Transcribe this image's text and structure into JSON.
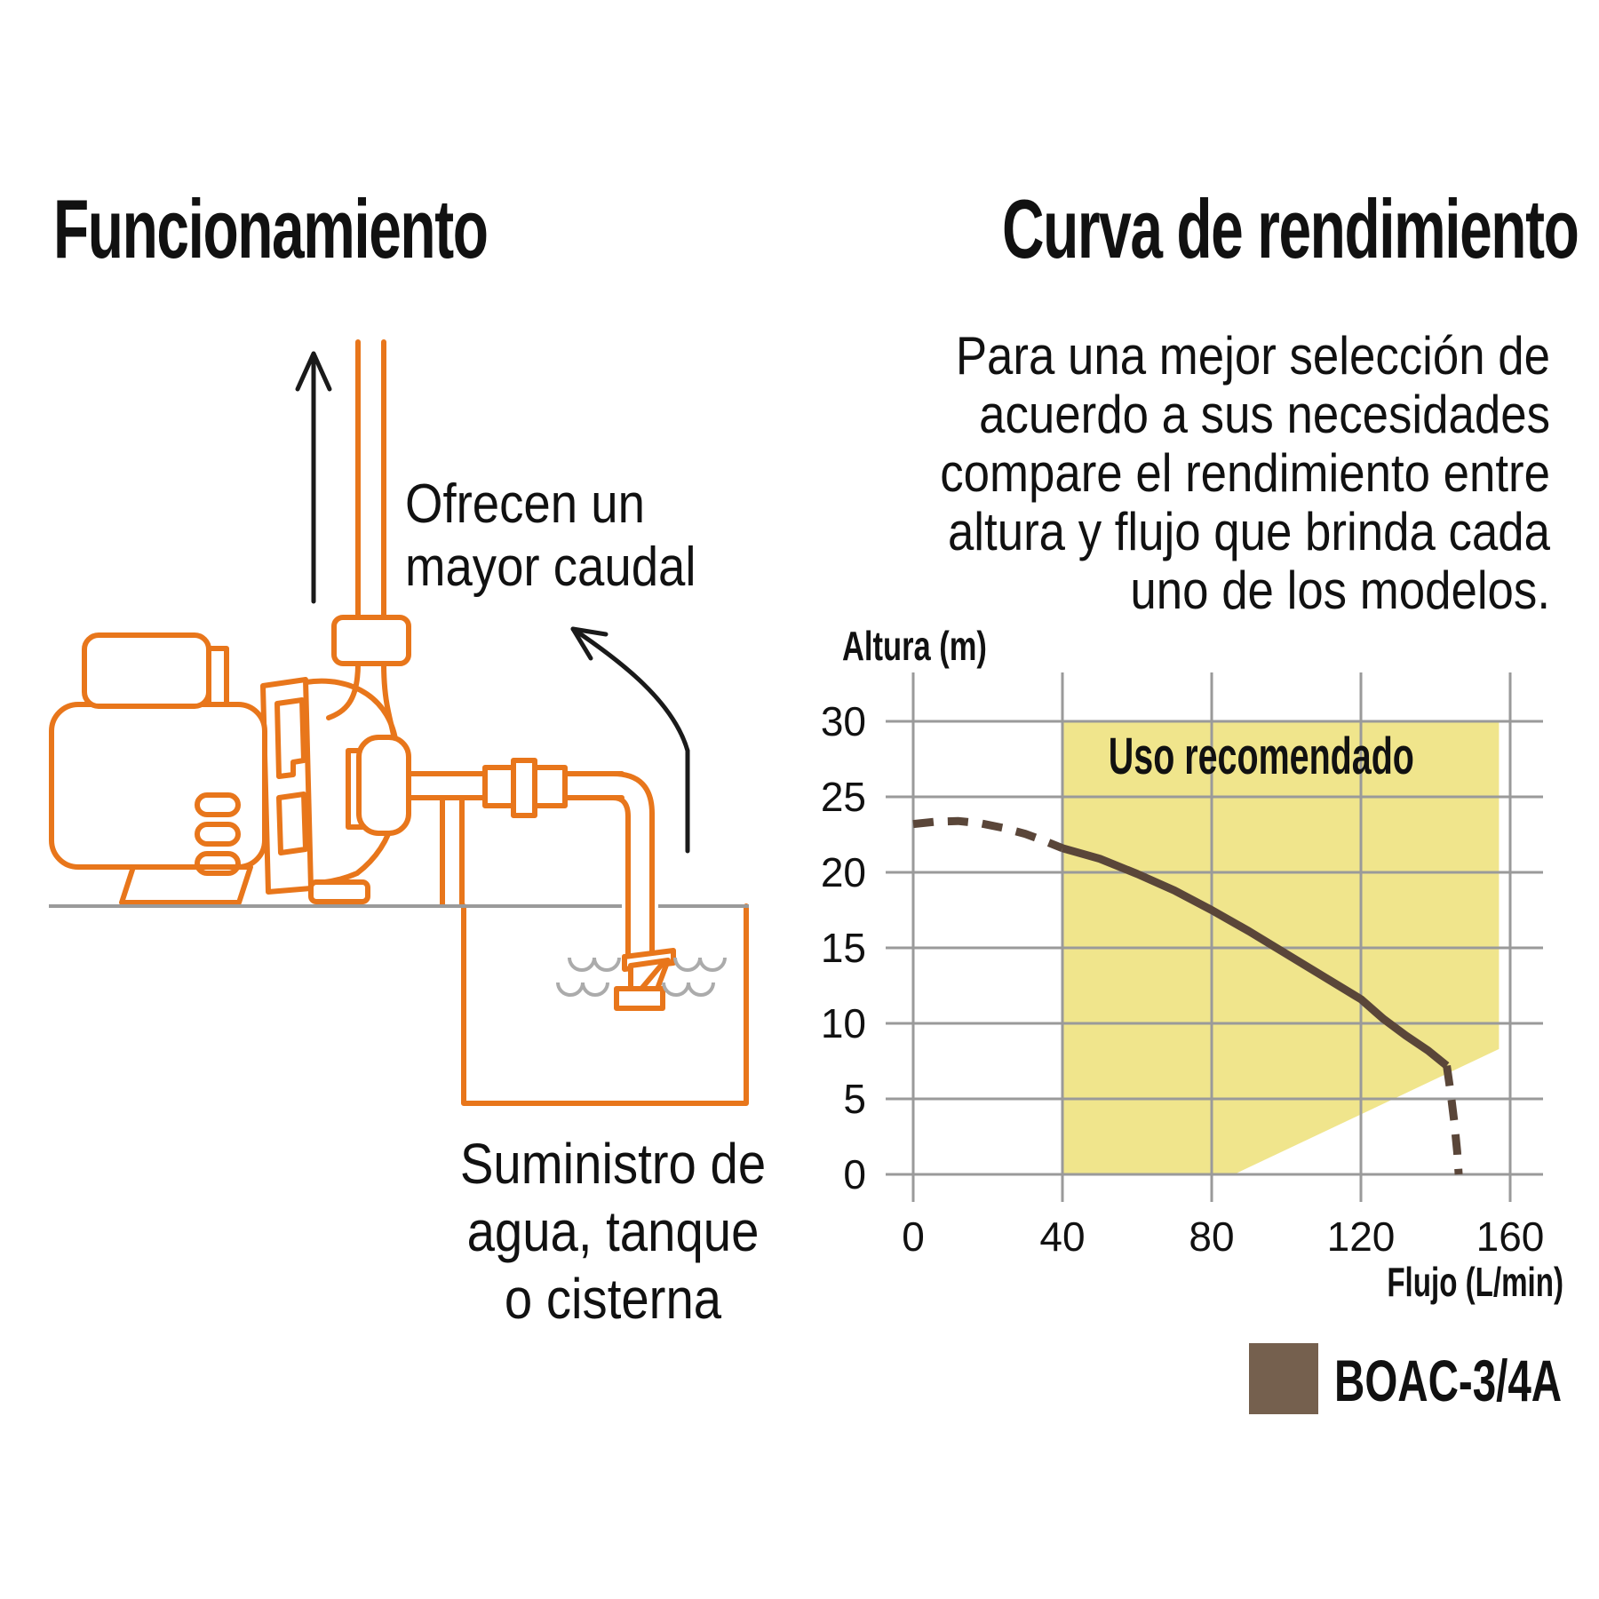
{
  "left": {
    "title": "Funcionamiento",
    "note_top": [
      "Ofrecen un",
      "mayor caudal"
    ],
    "note_bottom": [
      "Suministro de",
      "agua, tanque",
      "o cisterna"
    ],
    "diagram_colors": {
      "pump_orange": "#E8761B",
      "ground_gray": "#9A9A9A",
      "water_gray": "#ABABAB",
      "arrow_black": "#1A1A1A"
    }
  },
  "right": {
    "title": "Curva de rendimiento",
    "paragraph": [
      "Para una mejor selección de",
      "acuerdo a sus necesidades",
      "compare el rendimiento entre",
      "altura y flujo que brinda cada",
      "uno de los modelos."
    ],
    "legend": {
      "label": "BOAC-3/4A",
      "swatch_color": "#75604E"
    }
  },
  "chart_data": {
    "type": "line",
    "title": "Curva de rendimiento",
    "xlabel": "Flujo (L/min)",
    "ylabel": "Altura (m)",
    "xlim": [
      0,
      160
    ],
    "ylim": [
      0,
      30
    ],
    "x_ticks": [
      0,
      40,
      80,
      120,
      160
    ],
    "y_ticks": [
      0,
      5,
      10,
      15,
      20,
      25,
      30
    ],
    "grid": true,
    "grid_color": "#9A9A9A",
    "region": {
      "label": "Uso recomendado",
      "color": "#F0E58C",
      "polygon": [
        [
          40,
          0
        ],
        [
          86,
          0
        ],
        [
          157,
          8.3
        ],
        [
          157,
          30
        ],
        [
          40,
          30
        ]
      ]
    },
    "series": [
      {
        "name": "BOAC-3/4A",
        "color": "#5A4639",
        "segments": [
          {
            "style": "dashed",
            "points": [
              [
                0,
                23.2
              ],
              [
                6,
                23.35
              ],
              [
                12,
                23.4
              ],
              [
                18,
                23.25
              ],
              [
                24,
                22.95
              ],
              [
                30,
                22.55
              ],
              [
                35,
                22.1
              ],
              [
                40,
                21.6
              ]
            ]
          },
          {
            "style": "solid",
            "points": [
              [
                40,
                21.6
              ],
              [
                50,
                20.9
              ],
              [
                60,
                19.9
              ],
              [
                70,
                18.8
              ],
              [
                80,
                17.5
              ],
              [
                90,
                16.1
              ],
              [
                100,
                14.6
              ],
              [
                110,
                13.1
              ],
              [
                120,
                11.6
              ],
              [
                126,
                10.3
              ],
              [
                132,
                9.2
              ],
              [
                138,
                8.2
              ],
              [
                143,
                7.2
              ]
            ]
          },
          {
            "style": "dashed",
            "points": [
              [
                143,
                7.2
              ],
              [
                144,
                5.5
              ],
              [
                145,
                3.5
              ],
              [
                145.8,
                1.5
              ],
              [
                146.2,
                0
              ]
            ]
          }
        ]
      }
    ]
  }
}
